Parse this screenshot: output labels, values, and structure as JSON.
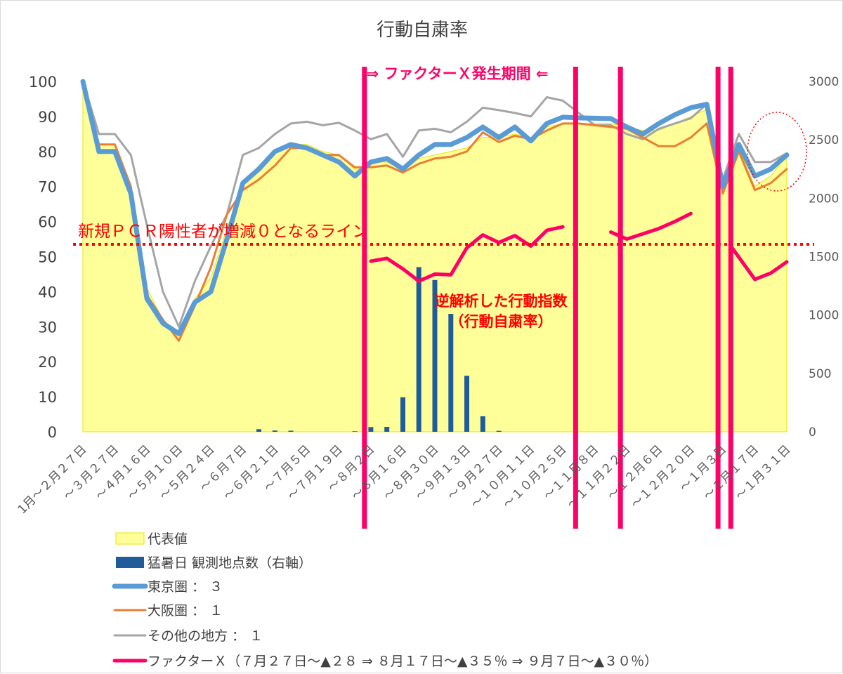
{
  "chart_data": {
    "type": "line",
    "title": "行動自粛率",
    "left_axis": {
      "ylim": [
        0,
        100
      ],
      "ticks": [
        "0",
        "10",
        "20",
        "30",
        "40",
        "50",
        "60",
        "70",
        "80",
        "90",
        "100"
      ]
    },
    "right_axis": {
      "ylim": [
        0,
        3000
      ],
      "ticks": [
        "0",
        "500",
        "1000",
        "1500",
        "2000",
        "2500",
        "3000"
      ]
    },
    "x_labels": [
      {
        "i": 0,
        "label": "1月〜２月２７日"
      },
      {
        "i": 2,
        "label": "〜３月２７日"
      },
      {
        "i": 4,
        "label": "〜４月１６日"
      },
      {
        "i": 6,
        "label": "〜５月１０日"
      },
      {
        "i": 8,
        "label": "〜５月２４日"
      },
      {
        "i": 10,
        "label": "〜６月７日"
      },
      {
        "i": 12,
        "label": "〜６月２１日"
      },
      {
        "i": 14,
        "label": "〜７月５日"
      },
      {
        "i": 16,
        "label": "〜７月１９日"
      },
      {
        "i": 18,
        "label": "〜８月２日"
      },
      {
        "i": 20,
        "label": "〜８月１６日"
      },
      {
        "i": 22,
        "label": "〜８月３０日"
      },
      {
        "i": 24,
        "label": "〜９月１３日"
      },
      {
        "i": 26,
        "label": "〜９月２７日"
      },
      {
        "i": 28,
        "label": "〜１０月１１日"
      },
      {
        "i": 30,
        "label": "〜１０月２５日"
      },
      {
        "i": 32,
        "label": "〜１１月８日"
      },
      {
        "i": 34,
        "label": "〜１１月２２日"
      },
      {
        "i": 36,
        "label": "〜１２月６日"
      },
      {
        "i": 38,
        "label": "〜１２月２０日"
      },
      {
        "i": 40,
        "label": "〜１月３日"
      },
      {
        "i": 42,
        "label": "〜１月１７日"
      },
      {
        "i": 44,
        "label": "〜１月３１日"
      }
    ],
    "series": [
      {
        "name": "代表値",
        "kind": "area",
        "color": "#ffff99",
        "values": [
          100,
          82,
          82,
          66,
          41,
          32,
          28,
          38,
          44,
          58,
          71,
          76,
          80,
          82,
          82,
          80,
          79,
          75,
          77,
          77,
          75,
          78,
          79,
          80,
          81,
          84,
          84,
          85,
          84,
          87,
          88,
          88,
          88,
          88,
          87,
          86,
          86,
          88,
          90,
          92,
          70,
          81,
          70,
          73,
          79
        ]
      },
      {
        "name": "猛暑日 観測地点数（右軸）",
        "kind": "bar",
        "axis": "right",
        "color": "#1f5c99",
        "values": [
          0,
          0,
          0,
          0,
          0,
          0,
          0,
          0,
          0,
          0,
          0,
          22,
          11,
          9,
          0,
          0,
          0,
          5,
          40,
          42,
          295,
          1410,
          1300,
          1010,
          480,
          133,
          8,
          0,
          0,
          0,
          0,
          0,
          0,
          0,
          0,
          0,
          0,
          0,
          0,
          0,
          0,
          0,
          0,
          0,
          0
        ]
      },
      {
        "name": "東京圏 ： ３",
        "kind": "line",
        "color": "#5b9bd5",
        "values": [
          100,
          80,
          80,
          68,
          38,
          31,
          28,
          37,
          40,
          55,
          71,
          75,
          80,
          82,
          81,
          79,
          77,
          73,
          77,
          78,
          75,
          79,
          82,
          82,
          84,
          87,
          84,
          87,
          83,
          88,
          89.8,
          89.6,
          89.5,
          89.4,
          87,
          85,
          88,
          90.5,
          92.5,
          93.5,
          70,
          82,
          73,
          75,
          79
        ]
      },
      {
        "name": "大阪圏 ： １",
        "kind": "line",
        "color": "#ed7d31",
        "values": [
          100,
          82,
          82,
          70,
          39,
          32,
          26,
          36,
          47,
          62,
          69,
          72,
          76,
          81,
          81,
          79,
          79,
          75.5,
          75.5,
          76,
          74,
          76.5,
          78,
          78.5,
          80,
          85.5,
          82.7,
          84.5,
          83.5,
          86,
          88,
          88,
          87.5,
          87,
          86.5,
          84,
          81.5,
          81.5,
          84,
          88,
          68,
          80,
          69,
          71,
          75
        ]
      },
      {
        "name": "その他の地方 ： １",
        "kind": "line",
        "color": "#a5a5a5",
        "values": [
          100,
          85,
          85,
          79,
          59,
          40,
          30,
          43,
          53,
          62,
          79,
          81,
          85,
          88,
          88.5,
          87.5,
          88.2,
          86,
          83.5,
          85,
          78.5,
          86,
          86.5,
          85.5,
          88.5,
          92.5,
          91.8,
          91,
          90,
          95.5,
          94.5,
          91,
          87.5,
          87.5,
          85,
          83.5,
          86.5,
          88,
          89.5,
          93.5,
          72,
          85,
          77,
          77,
          79.5
        ]
      },
      {
        "name": "ファクターＸ（７月２７日〜▲２８ ⇒ ８月１７日〜▲３５％ ⇒ ９月７日〜▲３０％）",
        "kind": "line",
        "color": "#ff0066",
        "segments": [
          [
            [
              18,
              48.7
            ],
            [
              19,
              49.5
            ],
            [
              20,
              46.5
            ],
            [
              21,
              43
            ],
            [
              22,
              45
            ],
            [
              23,
              44.8
            ],
            [
              24,
              52.5
            ],
            [
              25,
              56.2
            ],
            [
              26,
              54
            ],
            [
              27,
              56
            ],
            [
              28,
              53
            ],
            [
              29,
              57.5
            ],
            [
              30,
              58.5
            ]
          ],
          [
            [
              33,
              57
            ],
            [
              34,
              55
            ],
            [
              35,
              56.5
            ],
            [
              36,
              58
            ],
            [
              37,
              60
            ],
            [
              38,
              62.3
            ]
          ],
          [
            [
              40.5,
              53
            ],
            [
              42,
              43.5
            ],
            [
              43,
              45.3
            ],
            [
              44,
              48.5
            ]
          ]
        ]
      }
    ],
    "annotations": {
      "threshold_label": "新規ＰＣＲ陽性者が増減０となるライン",
      "threshold_value": 53.5,
      "factor_x_label": "⇒ ファクターＸ発生期間 ⇐",
      "reverse_analysis_line1": "逆解析した行動指数",
      "reverse_analysis_line2": "（行動自粛率）"
    },
    "period_markers": [
      17.6,
      30.8,
      33.6,
      39.7,
      40.5
    ],
    "legend_position": "bottom",
    "grid": false
  }
}
